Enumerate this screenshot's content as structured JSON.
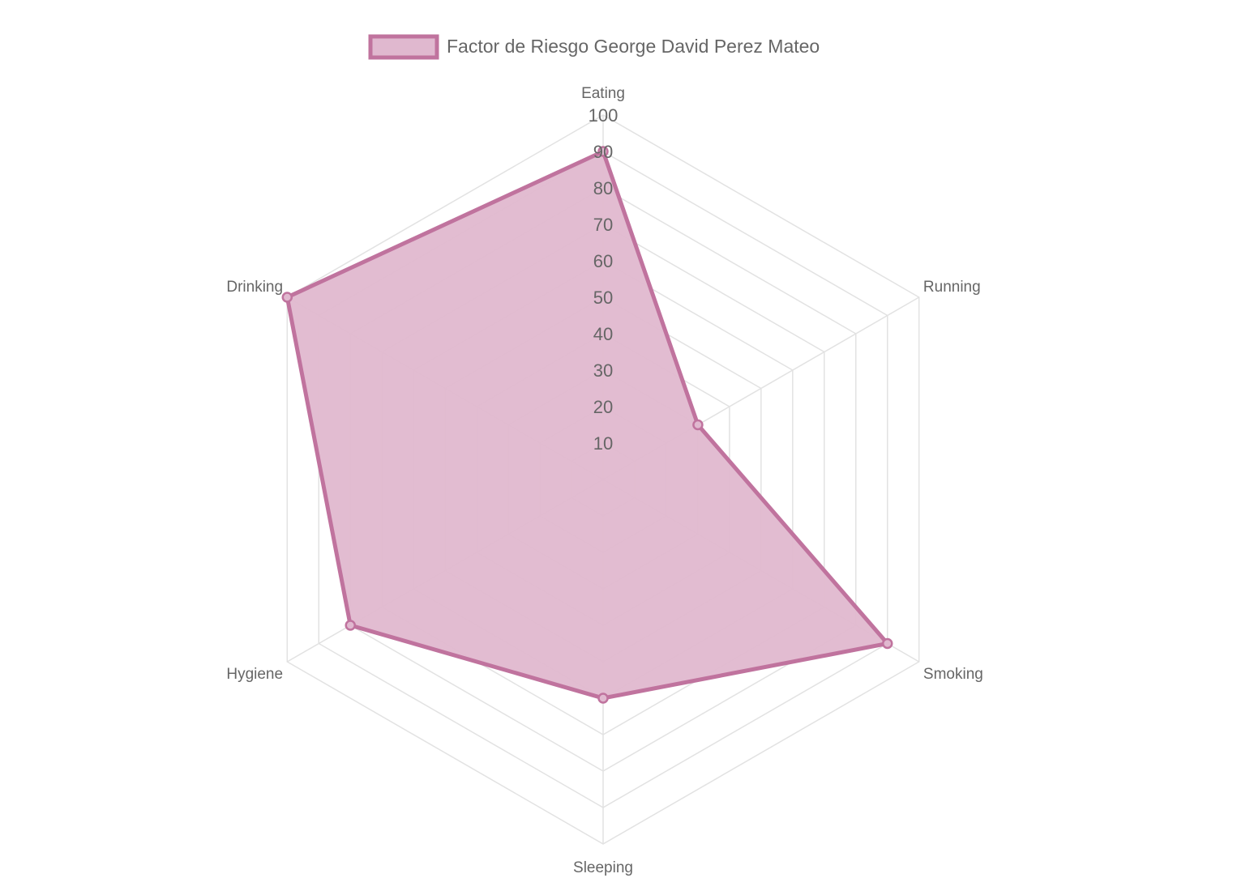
{
  "chart_data": {
    "type": "radar",
    "categories": [
      "Eating",
      "Running",
      "Smoking",
      "Sleeping",
      "Hygiene",
      "Drinking"
    ],
    "series": [
      {
        "name": "Factor de Riesgo George David Perez Mateo",
        "values": [
          90,
          30,
          90,
          60,
          80,
          100
        ]
      }
    ],
    "r_range": [
      0,
      100
    ],
    "ticks": [
      "10",
      "20",
      "30",
      "40",
      "50",
      "60",
      "70",
      "80",
      "90",
      "100"
    ],
    "grid": true,
    "legend_position": "top"
  },
  "colors": {
    "series_stroke": "#c0739e",
    "series_fill": "#e0b8cf",
    "grid": "#e2e2e2",
    "text": "#666666"
  }
}
